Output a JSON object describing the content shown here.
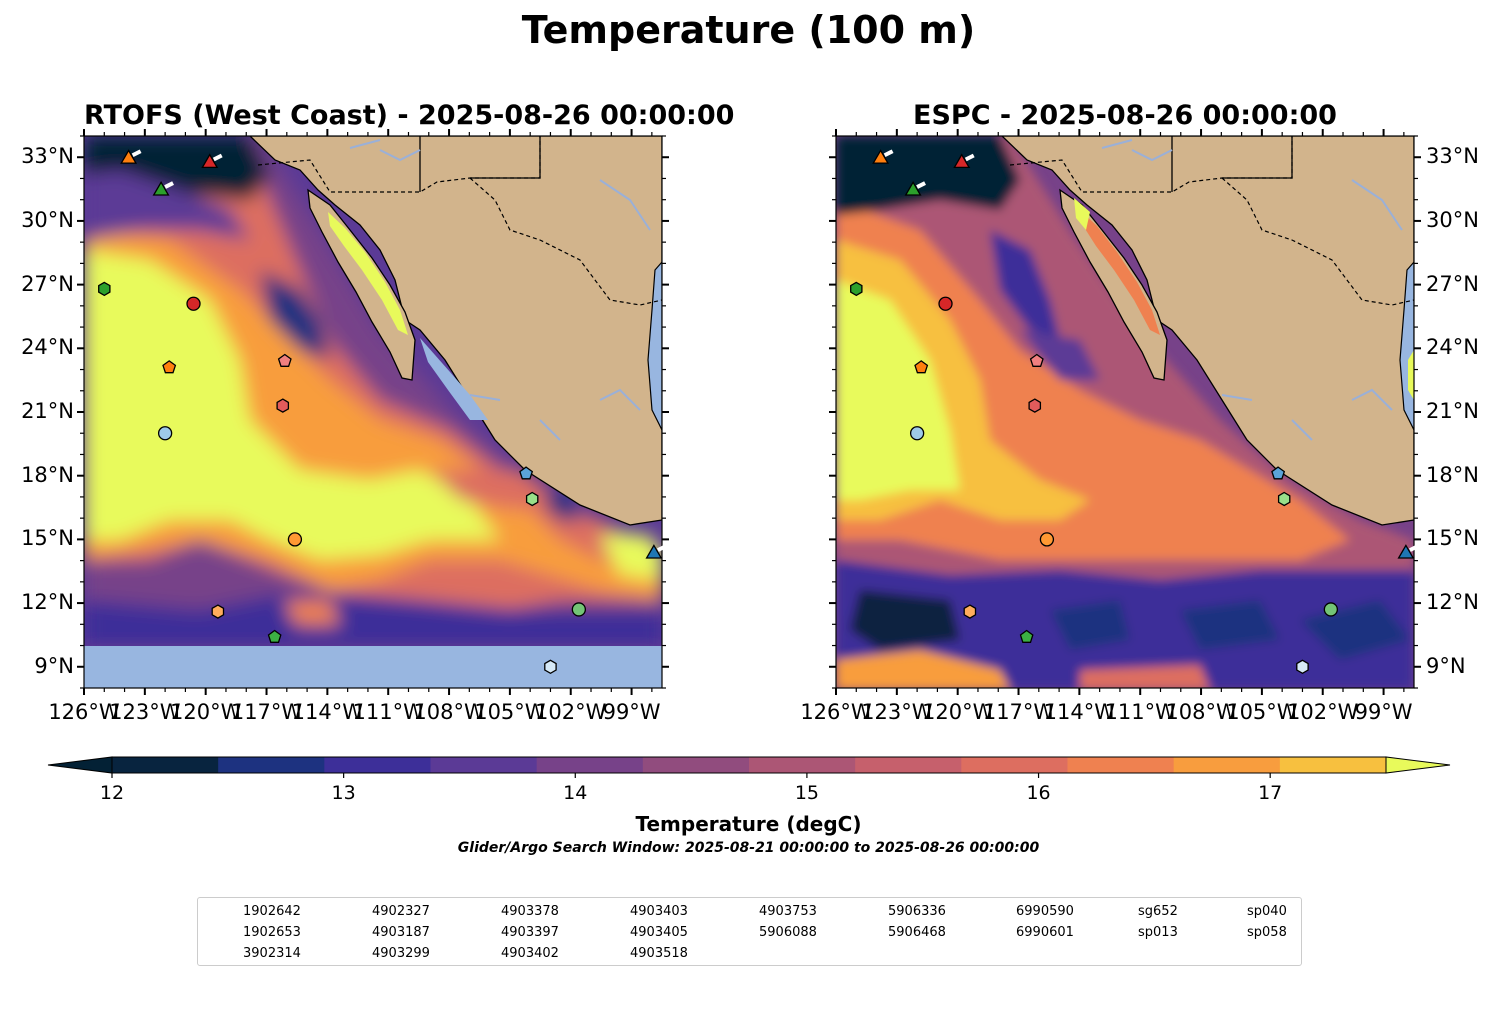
{
  "figure": {
    "title": "Temperature (100 m)"
  },
  "chart_data": [
    {
      "type": "heatmap",
      "title": "RTOFS (West Coast) - 2025-08-26 00:00:00",
      "model": "RTOFS (West Coast)",
      "time": "2025-08-26 00:00:00",
      "xlim": [
        -126,
        -97.5
      ],
      "ylim": [
        8,
        34
      ],
      "x_ticks": [
        "126°W",
        "123°W",
        "120°W",
        "117°W",
        "114°W",
        "111°W",
        "108°W",
        "105°W",
        "102°W",
        "99°W"
      ],
      "y_ticks": [
        "33°N",
        "30°N",
        "27°N",
        "24°N",
        "21°N",
        "18°N",
        "15°N",
        "12°N",
        "9°N"
      ],
      "y_axis_side": "left",
      "missing_data_band": "south of ~10°N"
    },
    {
      "type": "heatmap",
      "title": "ESPC - 2025-08-26 00:00:00",
      "model": "ESPC",
      "time": "2025-08-26 00:00:00",
      "xlim": [
        -126,
        -97.5
      ],
      "ylim": [
        8,
        34
      ],
      "x_ticks": [
        "126°W",
        "123°W",
        "120°W",
        "117°W",
        "114°W",
        "111°W",
        "108°W",
        "105°W",
        "102°W",
        "99°W"
      ],
      "y_ticks": [
        "33°N",
        "30°N",
        "27°N",
        "24°N",
        "21°N",
        "18°N",
        "15°N",
        "12°N",
        "9°N"
      ],
      "y_axis_side": "right"
    }
  ],
  "colorbar": {
    "label": "Temperature (degC)",
    "subtitle": "Glider/Argo Search Window: 2025-08-21 00:00:00 to 2025-08-26 00:00:00",
    "ticks": [
      "12",
      "13",
      "14",
      "15",
      "16",
      "17"
    ],
    "min": 12,
    "max": 17.5,
    "step": 0.5,
    "extend": "both",
    "under_color": "#032135",
    "over_color": "#e8fa5b",
    "colors": [
      "#08243f",
      "#1d3280",
      "#3d2f99",
      "#5b3a96",
      "#774289",
      "#914c7e",
      "#ac5675",
      "#c6606c",
      "#dd6e60",
      "#ef8150",
      "#f89d3e",
      "#f7c03f"
    ]
  },
  "map_colors": {
    "land": "#d2b48c",
    "missing": "#98b6e0",
    "river": "#9ab0d8"
  },
  "platforms": [
    {
      "id": "1902642",
      "marker": "circle",
      "color": "#1f77b4",
      "lon": null,
      "lat": null
    },
    {
      "id": "1902653",
      "marker": "hexagon",
      "color": "#1f77b4",
      "lon": null,
      "lat": null
    },
    {
      "id": "3902314",
      "marker": "pentagon",
      "color": "#5ba3d9",
      "lon": -104.2,
      "lat": 18.1
    },
    {
      "id": "4902327",
      "marker": "circle",
      "color": "#9ecae9",
      "lon": -122.0,
      "lat": 20.0
    },
    {
      "id": "4903187",
      "marker": "hexagon",
      "color": "#d6e9f7",
      "lon": -103.0,
      "lat": 9.0
    },
    {
      "id": "4903299",
      "marker": "pentagon",
      "color": "#ff7f0e",
      "lon": -121.8,
      "lat": 23.1
    },
    {
      "id": "4903378",
      "marker": "circle",
      "color": "#ff9933",
      "lon": -115.6,
      "lat": 15.0
    },
    {
      "id": "4903397",
      "marker": "hexagon",
      "color": "#ffad5c",
      "lon": -119.4,
      "lat": 11.6
    },
    {
      "id": "4903402",
      "marker": "pentagon",
      "color": "#ffc896",
      "lon": null,
      "lat": null
    },
    {
      "id": "4903403",
      "marker": "circle",
      "color": "#fde0c5",
      "lon": null,
      "lat": null
    },
    {
      "id": "4903405",
      "marker": "hexagon",
      "color": "#2ca02c",
      "lon": -125.0,
      "lat": 26.8
    },
    {
      "id": "4903518",
      "marker": "pentagon",
      "color": "#3cb043",
      "lon": -116.6,
      "lat": 10.4
    },
    {
      "id": "4903753",
      "marker": "circle",
      "color": "#74c476",
      "lon": -101.6,
      "lat": 11.7
    },
    {
      "id": "5906088",
      "marker": "hexagon",
      "color": "#98df8a",
      "lon": -103.9,
      "lat": 16.9
    },
    {
      "id": "5906336",
      "marker": "pentagon",
      "color": "#d4f5cf",
      "lon": null,
      "lat": null
    },
    {
      "id": "5906468",
      "marker": "circle",
      "color": "#d62728",
      "lon": -120.6,
      "lat": 26.1
    },
    {
      "id": "6990590",
      "marker": "hexagon",
      "color": "#e35b5b",
      "lon": -116.2,
      "lat": 21.3
    },
    {
      "id": "6990601",
      "marker": "pentagon",
      "color": "#f08080",
      "lon": -116.1,
      "lat": 23.4
    },
    {
      "id": "sg652",
      "marker": "triangle",
      "color": "#1f77b4",
      "lon": -97.9,
      "lat": 14.4
    },
    {
      "id": "sp013",
      "marker": "triangle",
      "color": "#ff7f0e",
      "lon": -123.8,
      "lat": 33.0
    },
    {
      "id": "sp040",
      "marker": "triangle",
      "color": "#2ca02c",
      "lon": -122.2,
      "lat": 31.5
    },
    {
      "id": "sp058",
      "marker": "triangle",
      "color": "#d62728",
      "lon": -119.8,
      "lat": 32.8
    }
  ],
  "legend_columns": [
    [
      "1902642",
      "1902653",
      "3902314"
    ],
    [
      "4902327",
      "4903187",
      "4903299"
    ],
    [
      "4903378",
      "4903397",
      "4903402"
    ],
    [
      "4903403",
      "4903405",
      "4903518"
    ],
    [
      "4903753",
      "5906088"
    ],
    [
      "5906336",
      "5906468"
    ],
    [
      "6990590",
      "6990601"
    ],
    [
      "sg652",
      "sp013"
    ],
    [
      "sp040",
      "sp058"
    ]
  ]
}
